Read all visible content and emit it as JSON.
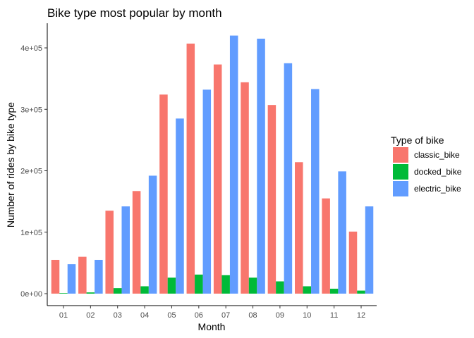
{
  "chart_data": {
    "type": "bar",
    "title": "Bike type most popular by month",
    "xlabel": "Month",
    "ylabel": "Number of rides by bike type",
    "categories": [
      "01",
      "02",
      "03",
      "04",
      "05",
      "06",
      "07",
      "08",
      "09",
      "10",
      "11",
      "12"
    ],
    "ylim": [
      0,
      435000
    ],
    "yticks": [
      0,
      100000,
      200000,
      300000,
      400000
    ],
    "ytick_labels": [
      "0e+00",
      "1e+05",
      "2e+05",
      "3e+05",
      "4e+05"
    ],
    "grid": false,
    "legend": {
      "title": "Type of bike",
      "position": "right"
    },
    "series": [
      {
        "name": "classic_bike",
        "color": "#F8766D",
        "values": [
          55000,
          60000,
          135000,
          167000,
          324000,
          407000,
          373000,
          344000,
          307000,
          214000,
          155000,
          101000
        ]
      },
      {
        "name": "docked_bike",
        "color": "#00BA38",
        "values": [
          1000,
          2000,
          9000,
          12000,
          26000,
          31000,
          30000,
          26000,
          20000,
          12000,
          8000,
          5000
        ]
      },
      {
        "name": "electric_bike",
        "color": "#619CFF",
        "values": [
          48000,
          55000,
          142000,
          192000,
          285000,
          332000,
          420000,
          415000,
          375000,
          333000,
          199000,
          142000
        ]
      }
    ]
  }
}
